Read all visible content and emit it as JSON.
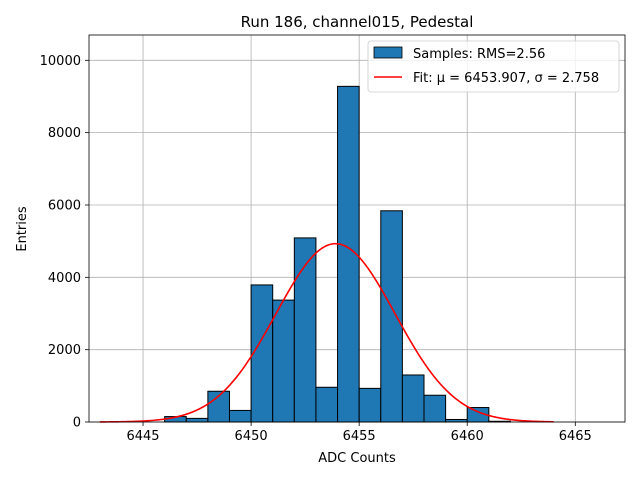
{
  "chart_data": {
    "type": "bar",
    "title": "Run 186, channel015, Pedestal",
    "xlabel": "ADC Counts",
    "ylabel": "Entries",
    "xlim": [
      6442.5,
      6467.3
    ],
    "ylim": [
      0,
      10700
    ],
    "x_ticks": [
      6445,
      6450,
      6455,
      6460,
      6465
    ],
    "x_tick_labels": [
      "6445",
      "6450",
      "6455",
      "6460",
      "6465"
    ],
    "y_ticks": [
      0,
      2000,
      4000,
      6000,
      8000,
      10000
    ],
    "y_tick_labels": [
      "0",
      "2000",
      "4000",
      "6000",
      "8000",
      "10000"
    ],
    "grid": true,
    "legend_position": "upper right",
    "bin_width": 1,
    "series": [
      {
        "name": "Samples: RMS=2.56",
        "kind": "histogram",
        "color": "#1f77b4",
        "edgecolor": "#000000",
        "bin_centers": [
          6446.5,
          6447.5,
          6448.5,
          6449.5,
          6450.5,
          6451.5,
          6452.5,
          6453.5,
          6454.5,
          6455.5,
          6456.5,
          6457.5,
          6458.5,
          6459.5,
          6460.5,
          6461.5
        ],
        "values": [
          150,
          100,
          850,
          320,
          3790,
          3370,
          5090,
          960,
          9280,
          930,
          5840,
          1300,
          740,
          70,
          400,
          20
        ]
      },
      {
        "name": "Fit: μ = 6453.907, σ = 2.758",
        "kind": "gaussian_fit",
        "color": "#ff0000",
        "mu": 6453.907,
        "sigma": 2.758,
        "amplitude": 4930,
        "x_range": [
          6443,
          6464
        ]
      }
    ]
  }
}
